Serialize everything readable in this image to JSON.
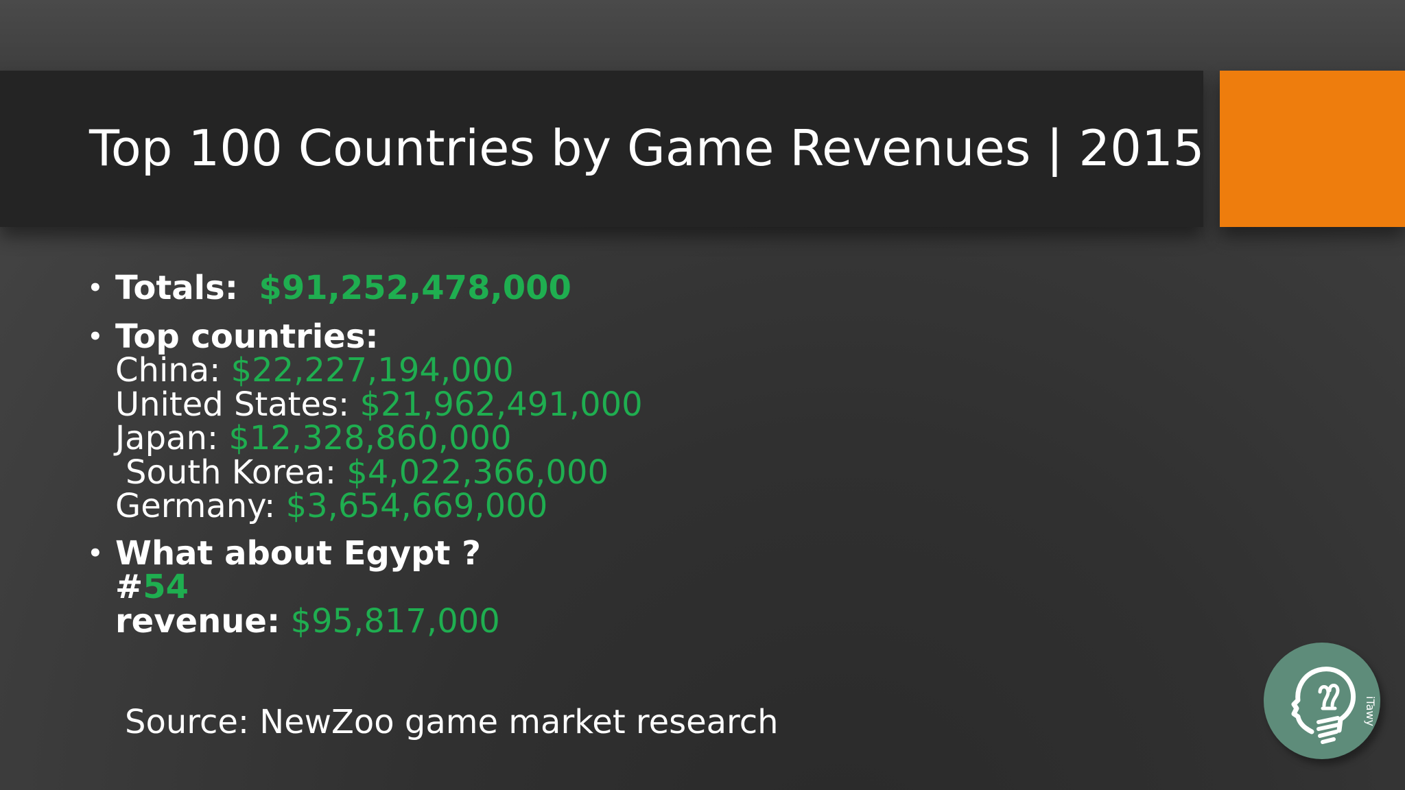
{
  "slide": {
    "title": "Top 100 Countries by Game Revenues | 2015",
    "accent_color": "#ee7d0d",
    "value_color": "#1fae50",
    "bullets": {
      "totals": {
        "label": "Totals:",
        "value": "$91,252,478,000"
      },
      "top_countries": {
        "label": "Top countries:",
        "items": [
          {
            "country": "China:",
            "revenue": "$22,227,194,000"
          },
          {
            "country": "United States:",
            "revenue": "$21,962,491,000"
          },
          {
            "country": "Japan:",
            "revenue": "$12,328,860,000"
          },
          {
            "country": "South Korea:",
            "revenue": "$4,022,366,000"
          },
          {
            "country": "Germany:",
            "revenue": "$3,654,669,000"
          }
        ]
      },
      "egypt": {
        "label": "What about Egypt ?",
        "rank_prefix": "#",
        "rank": "54",
        "revenue_label": "revenue:",
        "revenue": "$95,817,000"
      }
    },
    "source": "Source: NewZoo game market research",
    "logo": {
      "icon": "lightbulb-head-icon",
      "text": "iTawy"
    }
  }
}
